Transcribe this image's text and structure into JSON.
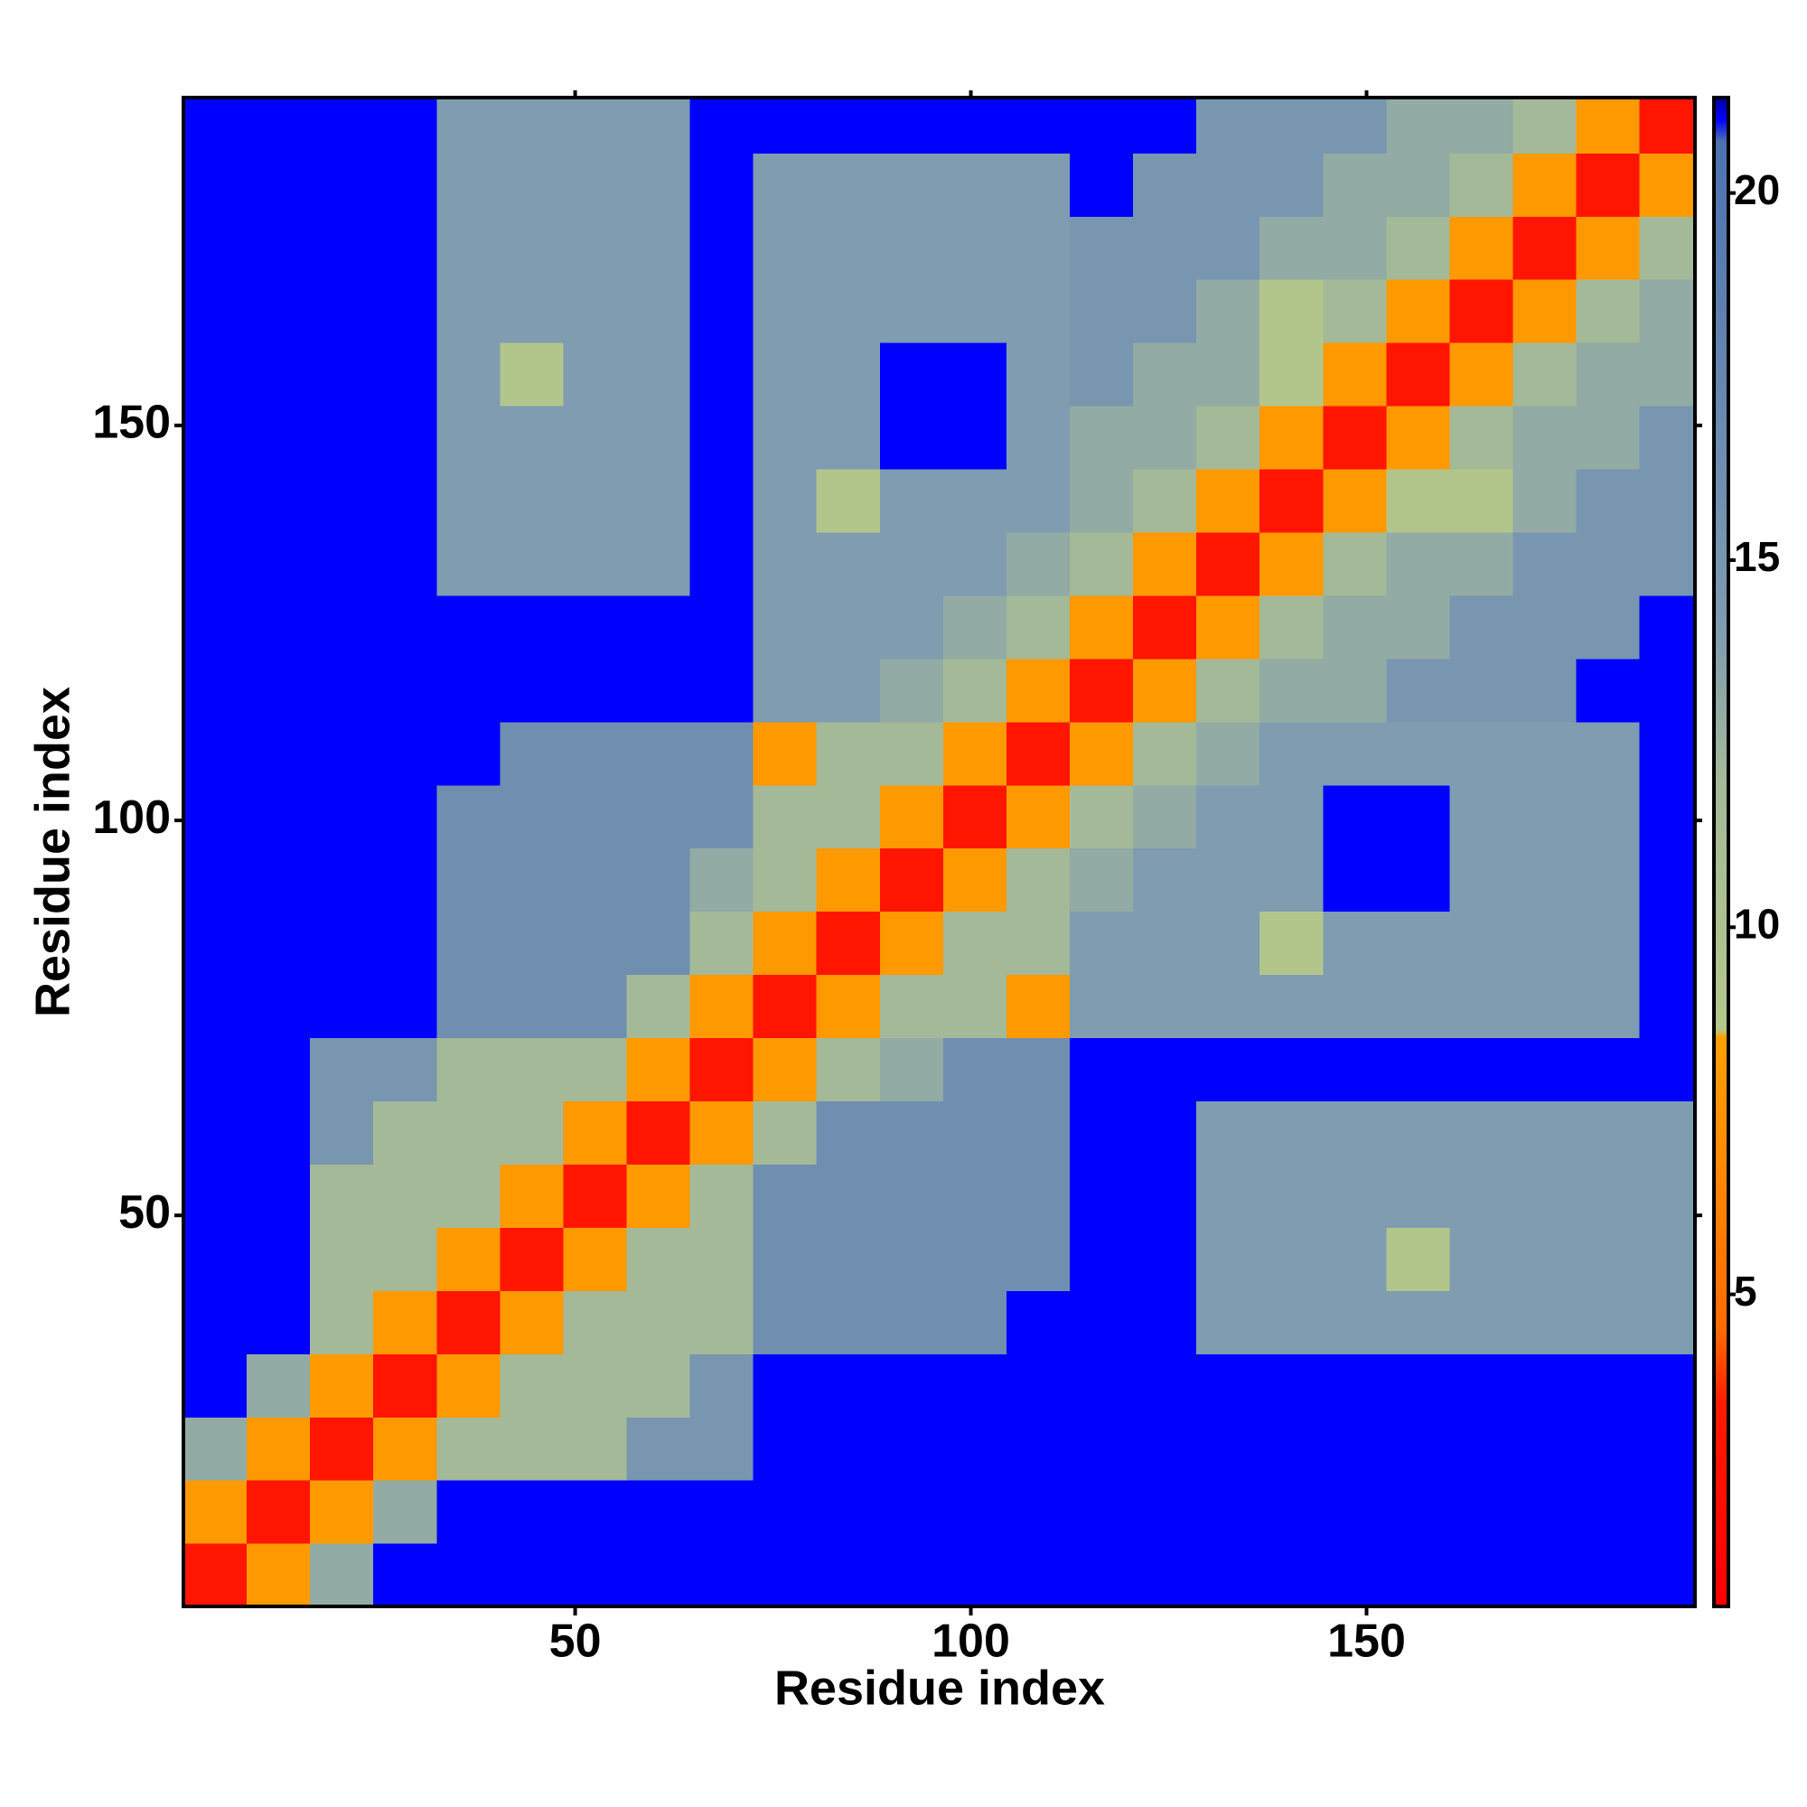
{
  "chart_data": {
    "type": "heatmap",
    "x_label": "Residue index",
    "y_label": "Residue index",
    "x_edges": [
      0.5,
      8.5,
      16.5,
      24.5,
      32.5,
      40.5,
      48.5,
      56.5,
      64.5,
      72.5,
      80.5,
      88.5,
      96.5,
      104.5,
      112.5,
      120.5,
      128.5,
      136.5,
      144.5,
      152.5,
      160.5,
      168.5,
      176.5,
      184.5,
      191.5
    ],
    "y_edges": [
      0.5,
      8.5,
      16.5,
      24.5,
      32.5,
      40.5,
      48.5,
      56.5,
      64.5,
      72.5,
      80.5,
      88.5,
      96.5,
      104.5,
      112.5,
      120.5,
      128.5,
      136.5,
      144.5,
      152.5,
      160.5,
      168.5,
      176.5,
      184.5,
      191.5
    ],
    "xlim": [
      0.5,
      191.5
    ],
    "ylim": [
      0.5,
      191.5
    ],
    "xticks": [
      50,
      100,
      150
    ],
    "yticks": [
      50,
      100,
      150
    ],
    "zlim": [
      0.75,
      21.3
    ],
    "zticks": [
      5,
      10,
      15,
      20
    ],
    "colorscale": [
      [
        0.75,
        "#ff0000"
      ],
      [
        3.5,
        "#ff1a00"
      ],
      [
        4.5,
        "#ff6a00"
      ],
      [
        8.5,
        "#ffa000"
      ],
      [
        8.6,
        "#b4c88a"
      ],
      [
        12,
        "#a4b998"
      ],
      [
        14,
        "#7f9cb0"
      ],
      [
        20.7,
        "#4d72b0"
      ],
      [
        21,
        "#0000ff"
      ],
      [
        21.3,
        "#00009a"
      ]
    ],
    "z": [
      [
        3,
        8,
        13,
        21,
        21,
        21,
        21,
        21,
        21,
        21,
        21,
        21,
        21,
        21,
        21,
        21,
        21,
        21,
        21,
        21,
        21,
        21,
        21,
        21
      ],
      [
        8,
        3,
        8,
        13,
        21,
        21,
        21,
        21,
        21,
        21,
        21,
        21,
        21,
        21,
        21,
        21,
        21,
        21,
        21,
        21,
        21,
        21,
        21,
        21
      ],
      [
        13,
        8,
        3,
        8,
        12,
        12,
        12,
        15,
        15,
        21,
        21,
        21,
        21,
        21,
        21,
        21,
        21,
        21,
        21,
        21,
        21,
        21,
        21,
        21
      ],
      [
        21,
        13,
        8,
        3,
        8,
        12,
        12,
        12,
        15,
        21,
        21,
        21,
        21,
        21,
        21,
        21,
        21,
        21,
        21,
        21,
        21,
        21,
        21,
        21
      ],
      [
        21,
        21,
        12,
        8,
        3,
        8,
        12,
        12,
        12,
        16,
        16,
        16,
        16,
        21,
        21,
        21,
        14,
        14,
        14,
        14,
        14,
        14,
        14,
        14
      ],
      [
        21,
        21,
        12,
        12,
        8,
        3,
        8,
        12,
        12,
        16,
        16,
        16,
        16,
        16,
        21,
        21,
        14,
        14,
        14,
        9,
        14,
        14,
        14,
        14
      ],
      [
        21,
        21,
        12,
        12,
        12,
        8,
        3,
        8,
        12,
        16,
        16,
        16,
        16,
        16,
        21,
        21,
        14,
        14,
        14,
        14,
        14,
        14,
        14,
        14
      ],
      [
        21,
        21,
        15,
        12,
        12,
        12,
        8,
        3,
        8,
        12,
        16,
        16,
        16,
        16,
        21,
        21,
        14,
        14,
        14,
        14,
        14,
        14,
        14,
        14
      ],
      [
        21,
        21,
        15,
        15,
        12,
        12,
        12,
        8,
        3,
        8,
        12,
        13,
        16,
        16,
        21,
        21,
        21,
        21,
        21,
        21,
        21,
        21,
        21,
        21
      ],
      [
        21,
        21,
        21,
        21,
        16,
        16,
        16,
        12,
        8,
        3,
        8,
        12,
        12,
        8,
        14,
        14,
        14,
        14,
        14,
        14,
        14,
        14,
        14,
        21
      ],
      [
        21,
        21,
        21,
        21,
        16,
        16,
        16,
        16,
        12,
        8,
        3,
        8,
        12,
        12,
        14,
        14,
        14,
        9,
        14,
        14,
        14,
        14,
        14,
        21
      ],
      [
        21,
        21,
        21,
        21,
        16,
        16,
        16,
        16,
        13,
        12,
        8,
        3,
        8,
        12,
        13,
        14,
        14,
        14,
        21,
        21,
        14,
        14,
        14,
        21
      ],
      [
        21,
        21,
        21,
        21,
        16,
        16,
        16,
        16,
        16,
        12,
        12,
        8,
        3,
        8,
        12,
        13,
        14,
        14,
        21,
        21,
        14,
        14,
        14,
        21
      ],
      [
        21,
        21,
        21,
        21,
        21,
        16,
        16,
        16,
        16,
        8,
        12,
        12,
        8,
        3,
        8,
        12,
        13,
        14,
        14,
        14,
        14,
        14,
        14,
        21
      ],
      [
        21,
        21,
        21,
        21,
        21,
        21,
        21,
        21,
        21,
        14,
        14,
        13,
        12,
        8,
        3,
        8,
        12,
        13,
        13,
        15,
        15,
        15,
        21,
        21
      ],
      [
        21,
        21,
        21,
        21,
        21,
        21,
        21,
        21,
        21,
        14,
        14,
        14,
        13,
        12,
        8,
        3,
        8,
        12,
        13,
        13,
        15,
        15,
        15,
        21
      ],
      [
        21,
        21,
        21,
        21,
        14,
        14,
        14,
        14,
        21,
        14,
        14,
        14,
        14,
        13,
        12,
        8,
        3,
        8,
        12,
        13,
        13,
        15,
        15,
        15
      ],
      [
        21,
        21,
        21,
        21,
        14,
        14,
        14,
        14,
        21,
        14,
        9,
        14,
        14,
        14,
        13,
        12,
        8,
        3,
        8,
        9,
        9,
        13,
        15,
        15
      ],
      [
        21,
        21,
        21,
        21,
        14,
        14,
        14,
        14,
        21,
        14,
        14,
        21,
        21,
        14,
        13,
        13,
        12,
        8,
        3,
        8,
        12,
        13,
        13,
        15
      ],
      [
        21,
        21,
        21,
        21,
        14,
        9,
        14,
        14,
        21,
        14,
        14,
        21,
        21,
        14,
        15,
        13,
        13,
        9,
        8,
        3,
        8,
        12,
        13,
        13
      ],
      [
        21,
        21,
        21,
        21,
        14,
        14,
        14,
        14,
        21,
        14,
        14,
        14,
        14,
        14,
        15,
        15,
        13,
        9,
        12,
        8,
        3,
        8,
        12,
        13
      ],
      [
        21,
        21,
        21,
        21,
        14,
        14,
        14,
        14,
        21,
        14,
        14,
        14,
        14,
        14,
        15,
        15,
        15,
        13,
        13,
        12,
        8,
        3,
        8,
        12
      ],
      [
        21,
        21,
        21,
        21,
        14,
        14,
        14,
        14,
        21,
        14,
        14,
        14,
        14,
        14,
        21,
        15,
        15,
        15,
        13,
        13,
        12,
        8,
        3,
        8
      ],
      [
        21,
        21,
        21,
        21,
        14,
        14,
        14,
        14,
        21,
        21,
        21,
        21,
        21,
        21,
        21,
        21,
        15,
        15,
        15,
        13,
        13,
        12,
        8,
        3
      ]
    ]
  }
}
